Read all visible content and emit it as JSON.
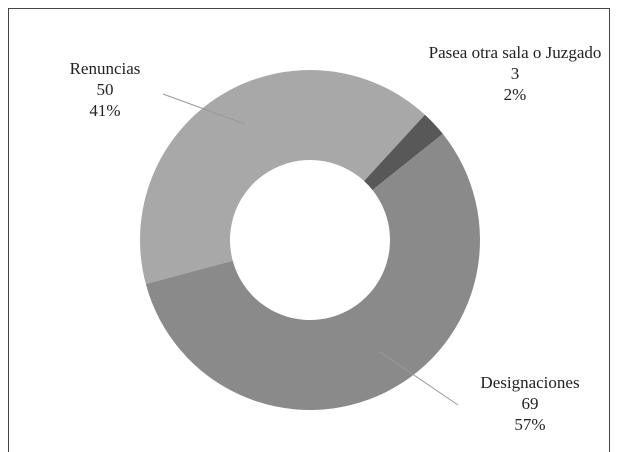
{
  "chart_data": {
    "type": "donut",
    "categories": [
      "Renuncias",
      "Pasea otra sala o Juzgado",
      "Designaciones"
    ],
    "values": [
      50,
      3,
      69
    ],
    "percent_labels": [
      "41%",
      "2%",
      "57%"
    ],
    "colors": [
      "#a8a8a8",
      "#585858",
      "#8a8a8a"
    ]
  }
}
